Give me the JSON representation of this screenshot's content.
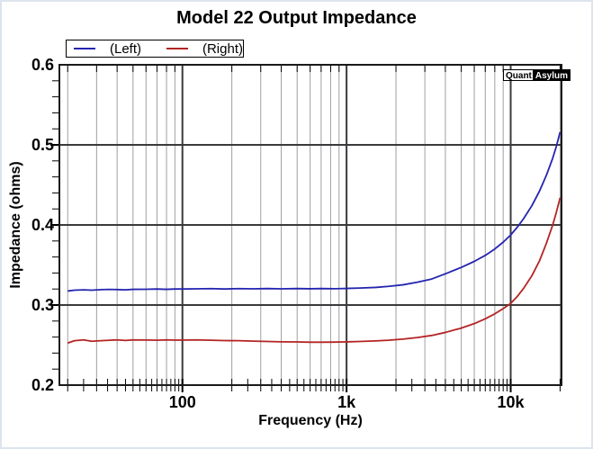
{
  "title": "Model 22 Output Impedance",
  "legend": {
    "items": [
      {
        "label": "(Left)",
        "color": "#2424b0"
      },
      {
        "label": "(Right)",
        "color": "#b42424"
      }
    ]
  },
  "watermark": {
    "part1": "Quant",
    "part2": "Asylum"
  },
  "colors": {
    "left_trace": "#2424b0",
    "right_trace": "#b42424",
    "minor_grid": "#a0a0a4",
    "major_grid": "#3a3a3c",
    "frame": "#1a1a1a",
    "tick": "#000000"
  },
  "chart_data": {
    "type": "line",
    "title": "Model 22 Output Impedance",
    "xlabel": "Frequency (Hz)",
    "ylabel": "Impedance (ohms)",
    "x_scale": "log",
    "x_range": [
      17.8,
      20400
    ],
    "y_range": [
      0.2,
      0.6
    ],
    "grid": true,
    "legend_position": "top-left",
    "x_major_ticks": [
      {
        "value": 100,
        "label": "100"
      },
      {
        "value": 1000,
        "label": "1k"
      },
      {
        "value": 10000,
        "label": "10k"
      }
    ],
    "y_major_ticks": [
      {
        "value": 0.2,
        "label": "0.2"
      },
      {
        "value": 0.3,
        "label": "0.3"
      },
      {
        "value": 0.4,
        "label": "0.4"
      },
      {
        "value": 0.5,
        "label": "0.5"
      },
      {
        "value": 0.6,
        "label": "0.6"
      }
    ],
    "y_minor_step": 0.02,
    "series": [
      {
        "name": "(Left)",
        "color": "#2424b0",
        "points": [
          [
            20,
            0.3175
          ],
          [
            22,
            0.3185
          ],
          [
            25,
            0.319
          ],
          [
            28,
            0.3185
          ],
          [
            32,
            0.3192
          ],
          [
            36,
            0.3195
          ],
          [
            40,
            0.3193
          ],
          [
            45,
            0.319
          ],
          [
            50,
            0.3196
          ],
          [
            60,
            0.3197
          ],
          [
            70,
            0.32
          ],
          [
            80,
            0.3196
          ],
          [
            90,
            0.32
          ],
          [
            100,
            0.32
          ],
          [
            120,
            0.3202
          ],
          [
            150,
            0.3205
          ],
          [
            180,
            0.32
          ],
          [
            220,
            0.3205
          ],
          [
            270,
            0.3202
          ],
          [
            330,
            0.3206
          ],
          [
            400,
            0.3202
          ],
          [
            500,
            0.3206
          ],
          [
            600,
            0.3203
          ],
          [
            700,
            0.3206
          ],
          [
            850,
            0.3204
          ],
          [
            1000,
            0.3207
          ],
          [
            1200,
            0.3212
          ],
          [
            1500,
            0.322
          ],
          [
            1800,
            0.3233
          ],
          [
            2200,
            0.3252
          ],
          [
            2700,
            0.3285
          ],
          [
            3300,
            0.3325
          ],
          [
            4000,
            0.339
          ],
          [
            5000,
            0.347
          ],
          [
            6000,
            0.3545
          ],
          [
            7000,
            0.362
          ],
          [
            8000,
            0.37
          ],
          [
            9000,
            0.3785
          ],
          [
            10000,
            0.3875
          ],
          [
            11000,
            0.3975
          ],
          [
            12000,
            0.408
          ],
          [
            13500,
            0.4245
          ],
          [
            15000,
            0.4425
          ],
          [
            16500,
            0.462
          ],
          [
            18000,
            0.483
          ],
          [
            19000,
            0.4985
          ],
          [
            20000,
            0.516
          ]
        ]
      },
      {
        "name": "(Right)",
        "color": "#b42424",
        "points": [
          [
            20,
            0.2525
          ],
          [
            22,
            0.2555
          ],
          [
            25,
            0.2565
          ],
          [
            28,
            0.2548
          ],
          [
            32,
            0.2555
          ],
          [
            36,
            0.256
          ],
          [
            40,
            0.2565
          ],
          [
            45,
            0.2558
          ],
          [
            50,
            0.2565
          ],
          [
            60,
            0.2563
          ],
          [
            70,
            0.256
          ],
          [
            80,
            0.2565
          ],
          [
            90,
            0.2562
          ],
          [
            100,
            0.2562
          ],
          [
            120,
            0.2565
          ],
          [
            150,
            0.256
          ],
          [
            180,
            0.2556
          ],
          [
            220,
            0.2555
          ],
          [
            270,
            0.2549
          ],
          [
            330,
            0.2545
          ],
          [
            400,
            0.2541
          ],
          [
            500,
            0.2539
          ],
          [
            600,
            0.2536
          ],
          [
            700,
            0.2536
          ],
          [
            850,
            0.2537
          ],
          [
            1000,
            0.254
          ],
          [
            1200,
            0.2545
          ],
          [
            1500,
            0.2552
          ],
          [
            1800,
            0.256
          ],
          [
            2200,
            0.2574
          ],
          [
            2700,
            0.2594
          ],
          [
            3300,
            0.262
          ],
          [
            4000,
            0.2658
          ],
          [
            5000,
            0.2712
          ],
          [
            6000,
            0.2768
          ],
          [
            7000,
            0.2828
          ],
          [
            8000,
            0.289
          ],
          [
            9000,
            0.2955
          ],
          [
            10000,
            0.302
          ],
          [
            11000,
            0.311
          ],
          [
            12000,
            0.321
          ],
          [
            13500,
            0.337
          ],
          [
            15000,
            0.3555
          ],
          [
            16500,
            0.377
          ],
          [
            18000,
            0.3995
          ],
          [
            19000,
            0.4162
          ],
          [
            20000,
            0.434
          ]
        ]
      }
    ]
  }
}
